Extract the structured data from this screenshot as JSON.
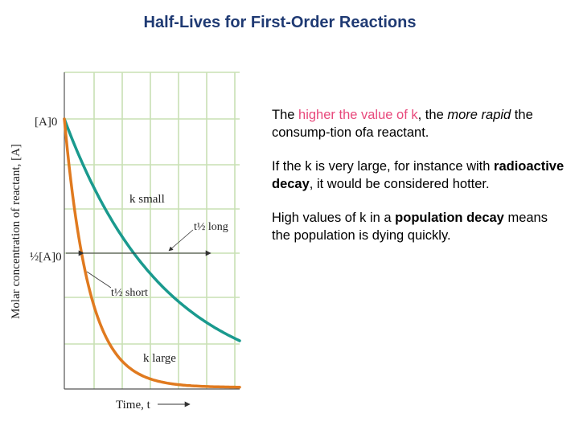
{
  "slide": {
    "title": "Half-Lives for First-Order Reactions"
  },
  "chart_data": {
    "type": "line",
    "xlabel": "Time, t",
    "ylabel": "Molar concentration of reactant, [A]",
    "y_ticks": [
      "[A]0",
      "1/2[A]0"
    ],
    "series": [
      {
        "name": "k small",
        "color": "#1a9a8e",
        "decay_constant": 1,
        "half_life_label": "t½ long"
      },
      {
        "name": "k large",
        "color": "#e07a1f",
        "decay_constant": 3,
        "half_life_label": "t½ short"
      }
    ],
    "grid": true,
    "labels": {
      "k_small": "k small",
      "k_large": "k large",
      "t_long": "t½ long",
      "t_short": "t½ short",
      "a0": "[A]0",
      "half_a0": "½[A]0",
      "time": "Time, t"
    }
  },
  "notes": {
    "p1": {
      "a": "The ",
      "b": "higher the value of k",
      "c": ", the ",
      "d": "more rapid",
      "e": " the consump-tion ofa reactant."
    },
    "p2": {
      "a": "If the k is very large, for instance with ",
      "b": "radioactive decay",
      "c": ", it would be considered hotter."
    },
    "p3": {
      "a": "High values of k in a ",
      "b": "population decay",
      "c": " means the population is dying quickly."
    }
  },
  "colors": {
    "title": "#1f3a73",
    "accent": "#e8497c",
    "grid": "#c8e0b4"
  }
}
